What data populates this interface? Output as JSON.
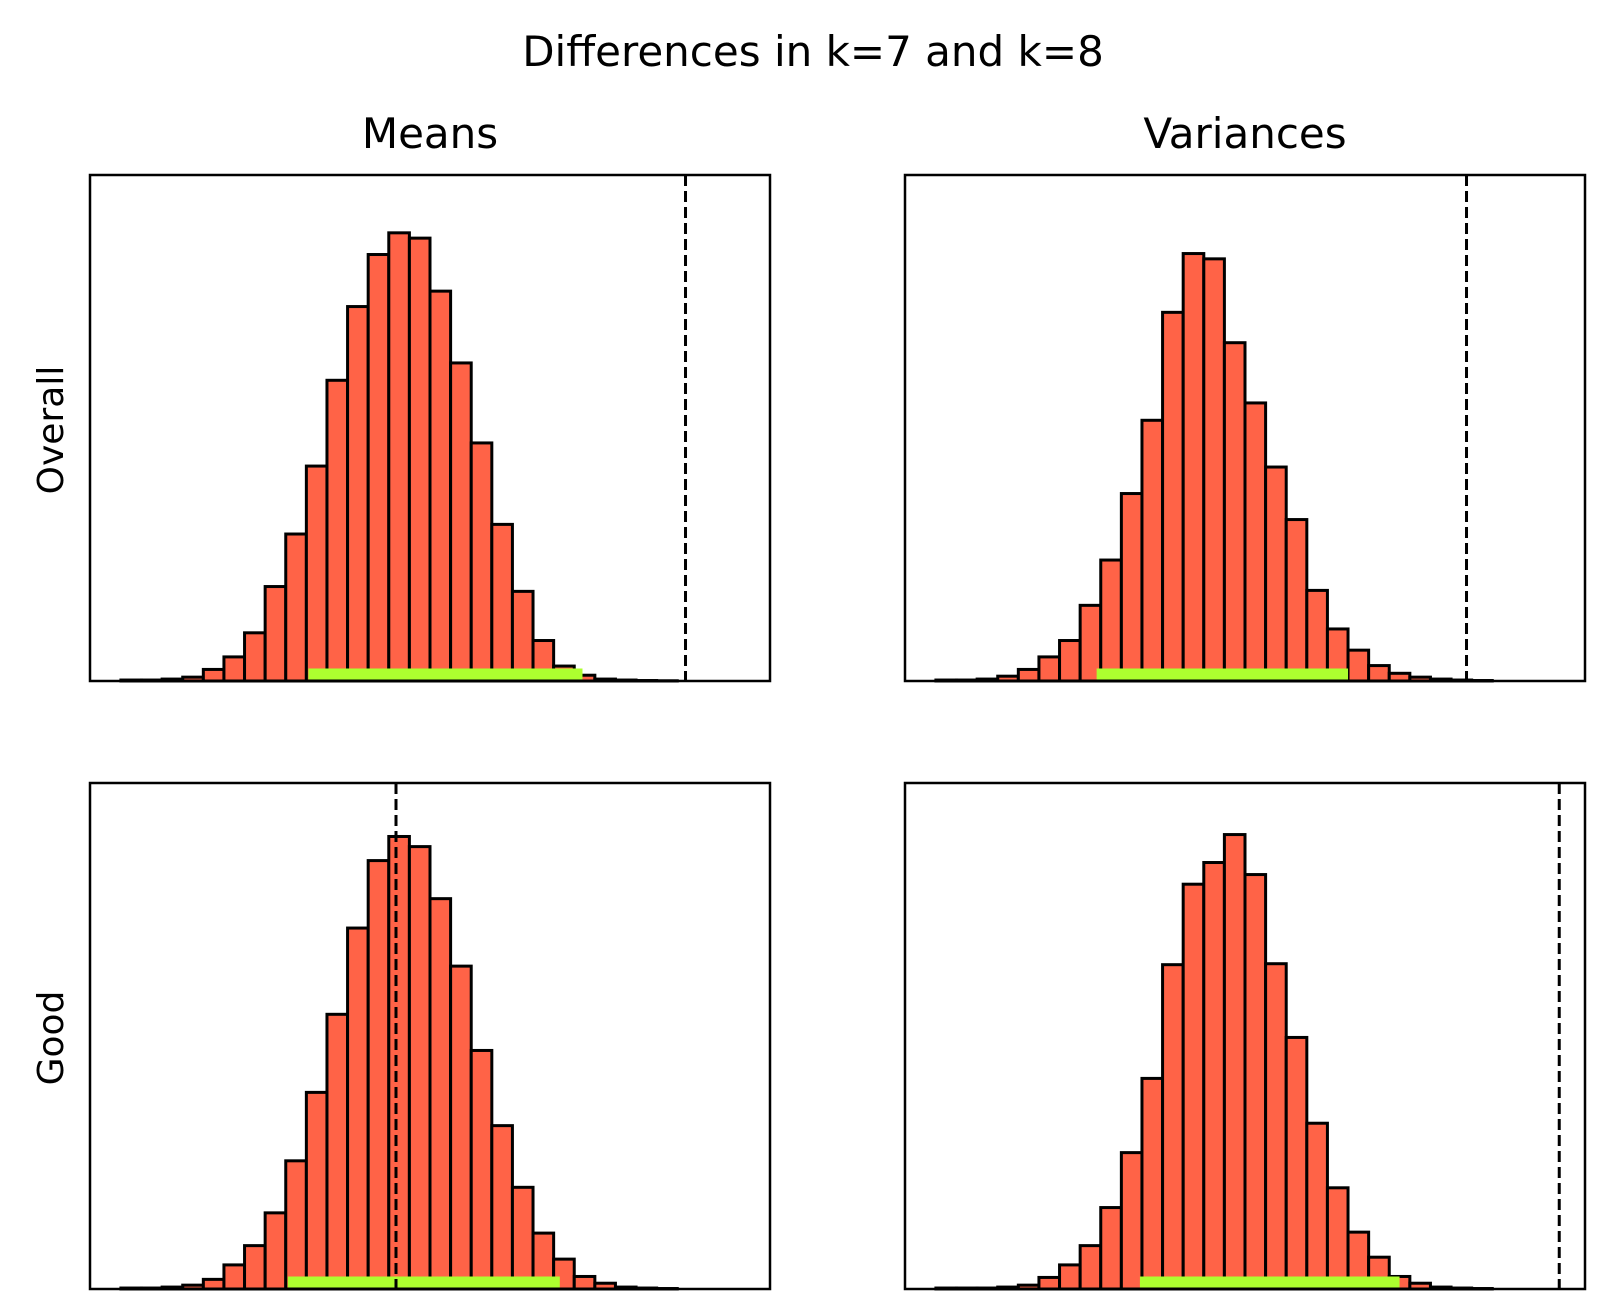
{
  "figure": {
    "suptitle": "Differences in k=7 and k=8",
    "col_titles": [
      "Means",
      "Variances"
    ],
    "row_labels": [
      "Overall",
      "Good"
    ]
  },
  "colors": {
    "bar_fill": "#FF6347",
    "bar_edge": "#000000",
    "interval": "#ADFF2F",
    "reference_line": "#000000"
  },
  "chart_data": [
    {
      "type": "bar",
      "row": "Overall",
      "column": "Means",
      "x_ticks_visible": false,
      "y_ticks_visible": false,
      "grid": false,
      "xlim": [
        0,
        33
      ],
      "ylim": [
        0,
        1.05
      ],
      "bin_counts": [
        0.002,
        0.002,
        0.004,
        0.008,
        0.024,
        0.05,
        0.1,
        0.196,
        0.305,
        0.446,
        0.624,
        0.777,
        0.885,
        0.93,
        0.919,
        0.809,
        0.66,
        0.494,
        0.325,
        0.186,
        0.084,
        0.031,
        0.012,
        0.004,
        0.002,
        0.001,
        0.0005
      ],
      "bins_start": 1.5,
      "interval": [
        10.6,
        23.9
      ],
      "reference_line": 28.9
    },
    {
      "type": "bar",
      "row": "Overall",
      "column": "Variances",
      "x_ticks_visible": false,
      "y_ticks_visible": false,
      "grid": false,
      "xlim": [
        0,
        33
      ],
      "ylim": [
        0,
        1.05
      ],
      "bin_counts": [
        0.002,
        0.002,
        0.004,
        0.01,
        0.024,
        0.05,
        0.084,
        0.157,
        0.251,
        0.389,
        0.541,
        0.765,
        0.887,
        0.876,
        0.702,
        0.577,
        0.444,
        0.335,
        0.188,
        0.108,
        0.064,
        0.032,
        0.016,
        0.008,
        0.004,
        0.002,
        0.001
      ],
      "bins_start": 1.5,
      "interval": [
        9.3,
        21.5
      ],
      "reference_line": 27.25
    },
    {
      "type": "bar",
      "row": "Good",
      "column": "Means",
      "x_ticks_visible": false,
      "y_ticks_visible": false,
      "grid": false,
      "xlim": [
        0,
        33
      ],
      "ylim": [
        0,
        1.05
      ],
      "bin_counts": [
        0.002,
        0.002,
        0.004,
        0.008,
        0.02,
        0.05,
        0.09,
        0.158,
        0.266,
        0.408,
        0.57,
        0.749,
        0.889,
        0.939,
        0.918,
        0.81,
        0.67,
        0.495,
        0.339,
        0.211,
        0.116,
        0.062,
        0.026,
        0.012,
        0.004,
        0.002,
        0.001
      ],
      "bins_start": 1.5,
      "interval": [
        9.6,
        22.8
      ],
      "reference_line": 14.85
    },
    {
      "type": "bar",
      "row": "Good",
      "column": "Variances",
      "x_ticks_visible": false,
      "y_ticks_visible": false,
      "grid": false,
      "xlim": [
        0,
        33
      ],
      "ylim": [
        0,
        1.05
      ],
      "bin_counts": [
        0.002,
        0.002,
        0.002,
        0.004,
        0.008,
        0.024,
        0.05,
        0.09,
        0.169,
        0.283,
        0.437,
        0.673,
        0.84,
        0.885,
        0.943,
        0.86,
        0.675,
        0.522,
        0.344,
        0.21,
        0.118,
        0.066,
        0.026,
        0.012,
        0.004,
        0.002,
        0.001
      ],
      "bins_start": 1.5,
      "interval": [
        11.4,
        24.0
      ],
      "reference_line": 31.75
    }
  ]
}
